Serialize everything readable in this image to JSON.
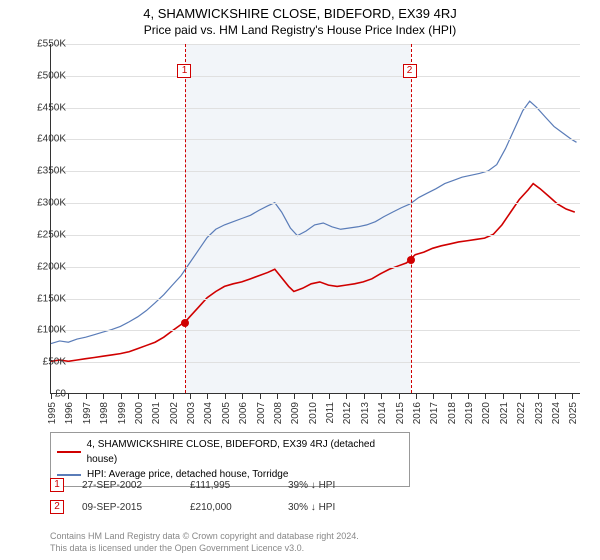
{
  "title": "4, SHAMWICKSHIRE CLOSE, BIDEFORD, EX39 4RJ",
  "subtitle": "Price paid vs. HM Land Registry's House Price Index (HPI)",
  "chart": {
    "type": "line",
    "background_color": "#ffffff",
    "shaded_band_color": "#f2f5f9",
    "grid_color": "#e0e0e0",
    "axis_color": "#333333",
    "label_fontsize": 10,
    "x": {
      "min": 1995,
      "max": 2025.5,
      "ticks": [
        1995,
        1996,
        1997,
        1998,
        1999,
        2000,
        2001,
        2002,
        2003,
        2004,
        2005,
        2006,
        2007,
        2008,
        2009,
        2010,
        2011,
        2012,
        2013,
        2014,
        2015,
        2016,
        2017,
        2018,
        2019,
        2020,
        2021,
        2022,
        2023,
        2024,
        2025
      ]
    },
    "y": {
      "min": 0,
      "max": 550,
      "ticks": [
        0,
        50,
        100,
        150,
        200,
        250,
        300,
        350,
        400,
        450,
        500,
        550
      ],
      "tick_prefix": "£",
      "tick_suffix": "K"
    },
    "shaded_band": {
      "x_start": 2002.74,
      "x_end": 2015.69
    },
    "series": [
      {
        "id": "price_paid",
        "label": "4, SHAMWICKSHIRE CLOSE, BIDEFORD, EX39 4RJ (detached house)",
        "color": "#d00000",
        "line_width": 1.6,
        "data": [
          [
            1995.0,
            50
          ],
          [
            1995.5,
            52
          ],
          [
            1996.0,
            50
          ],
          [
            1996.5,
            52
          ],
          [
            1997.0,
            54
          ],
          [
            1997.5,
            56
          ],
          [
            1998.0,
            58
          ],
          [
            1998.5,
            60
          ],
          [
            1999.0,
            62
          ],
          [
            1999.5,
            65
          ],
          [
            2000.0,
            70
          ],
          [
            2000.5,
            75
          ],
          [
            2001.0,
            80
          ],
          [
            2001.5,
            88
          ],
          [
            2002.0,
            98
          ],
          [
            2002.5,
            108
          ],
          [
            2002.74,
            112
          ],
          [
            2003.0,
            120
          ],
          [
            2003.5,
            135
          ],
          [
            2004.0,
            150
          ],
          [
            2004.5,
            160
          ],
          [
            2005.0,
            168
          ],
          [
            2005.5,
            172
          ],
          [
            2006.0,
            175
          ],
          [
            2006.5,
            180
          ],
          [
            2007.0,
            185
          ],
          [
            2007.5,
            190
          ],
          [
            2007.9,
            195
          ],
          [
            2008.2,
            185
          ],
          [
            2008.7,
            168
          ],
          [
            2009.0,
            160
          ],
          [
            2009.5,
            165
          ],
          [
            2010.0,
            172
          ],
          [
            2010.5,
            175
          ],
          [
            2011.0,
            170
          ],
          [
            2011.5,
            168
          ],
          [
            2012.0,
            170
          ],
          [
            2012.5,
            172
          ],
          [
            2013.0,
            175
          ],
          [
            2013.5,
            180
          ],
          [
            2014.0,
            188
          ],
          [
            2014.5,
            195
          ],
          [
            2015.0,
            200
          ],
          [
            2015.5,
            205
          ],
          [
            2015.69,
            210
          ],
          [
            2016.0,
            218
          ],
          [
            2016.5,
            222
          ],
          [
            2017.0,
            228
          ],
          [
            2017.5,
            232
          ],
          [
            2018.0,
            235
          ],
          [
            2018.5,
            238
          ],
          [
            2019.0,
            240
          ],
          [
            2019.5,
            242
          ],
          [
            2020.0,
            244
          ],
          [
            2020.5,
            250
          ],
          [
            2021.0,
            265
          ],
          [
            2021.5,
            285
          ],
          [
            2022.0,
            305
          ],
          [
            2022.5,
            320
          ],
          [
            2022.8,
            330
          ],
          [
            2023.2,
            322
          ],
          [
            2023.7,
            310
          ],
          [
            2024.2,
            298
          ],
          [
            2024.7,
            290
          ],
          [
            2025.2,
            285
          ]
        ]
      },
      {
        "id": "hpi",
        "label": "HPI: Average price, detached house, Torridge",
        "color": "#5a7cb8",
        "line_width": 1.2,
        "data": [
          [
            1995.0,
            78
          ],
          [
            1995.5,
            82
          ],
          [
            1996.0,
            80
          ],
          [
            1996.5,
            85
          ],
          [
            1997.0,
            88
          ],
          [
            1997.5,
            92
          ],
          [
            1998.0,
            96
          ],
          [
            1998.5,
            100
          ],
          [
            1999.0,
            105
          ],
          [
            1999.5,
            112
          ],
          [
            2000.0,
            120
          ],
          [
            2000.5,
            130
          ],
          [
            2001.0,
            142
          ],
          [
            2001.5,
            155
          ],
          [
            2002.0,
            170
          ],
          [
            2002.5,
            185
          ],
          [
            2003.0,
            205
          ],
          [
            2003.5,
            225
          ],
          [
            2004.0,
            245
          ],
          [
            2004.5,
            258
          ],
          [
            2005.0,
            265
          ],
          [
            2005.5,
            270
          ],
          [
            2006.0,
            275
          ],
          [
            2006.5,
            280
          ],
          [
            2007.0,
            288
          ],
          [
            2007.5,
            295
          ],
          [
            2007.9,
            300
          ],
          [
            2008.3,
            285
          ],
          [
            2008.8,
            260
          ],
          [
            2009.2,
            248
          ],
          [
            2009.7,
            255
          ],
          [
            2010.2,
            265
          ],
          [
            2010.7,
            268
          ],
          [
            2011.2,
            262
          ],
          [
            2011.7,
            258
          ],
          [
            2012.2,
            260
          ],
          [
            2012.7,
            262
          ],
          [
            2013.2,
            265
          ],
          [
            2013.7,
            270
          ],
          [
            2014.2,
            278
          ],
          [
            2014.7,
            285
          ],
          [
            2015.2,
            292
          ],
          [
            2015.7,
            298
          ],
          [
            2016.2,
            308
          ],
          [
            2016.7,
            315
          ],
          [
            2017.2,
            322
          ],
          [
            2017.7,
            330
          ],
          [
            2018.2,
            335
          ],
          [
            2018.7,
            340
          ],
          [
            2019.2,
            343
          ],
          [
            2019.7,
            346
          ],
          [
            2020.2,
            350
          ],
          [
            2020.7,
            360
          ],
          [
            2021.2,
            385
          ],
          [
            2021.7,
            415
          ],
          [
            2022.2,
            445
          ],
          [
            2022.6,
            460
          ],
          [
            2023.0,
            450
          ],
          [
            2023.5,
            435
          ],
          [
            2024.0,
            420
          ],
          [
            2024.5,
            410
          ],
          [
            2025.0,
            400
          ],
          [
            2025.3,
            395
          ]
        ]
      }
    ],
    "markers": [
      {
        "n": "1",
        "x": 2002.74,
        "y": 112,
        "dot_color": "#d00000"
      },
      {
        "n": "2",
        "x": 2015.69,
        "y": 210,
        "dot_color": "#d00000"
      }
    ]
  },
  "legend": {
    "rows": [
      {
        "color": "#d00000",
        "label": "4, SHAMWICKSHIRE CLOSE, BIDEFORD, EX39 4RJ (detached house)"
      },
      {
        "color": "#5a7cb8",
        "label": "HPI: Average price, detached house, Torridge"
      }
    ]
  },
  "sales": [
    {
      "n": "1",
      "date": "27-SEP-2002",
      "price": "£111,995",
      "delta": "39% ↓ HPI"
    },
    {
      "n": "2",
      "date": "09-SEP-2015",
      "price": "£210,000",
      "delta": "30% ↓ HPI"
    }
  ],
  "footer": {
    "line1": "Contains HM Land Registry data © Crown copyright and database right 2024.",
    "line2": "This data is licensed under the Open Government Licence v3.0."
  }
}
